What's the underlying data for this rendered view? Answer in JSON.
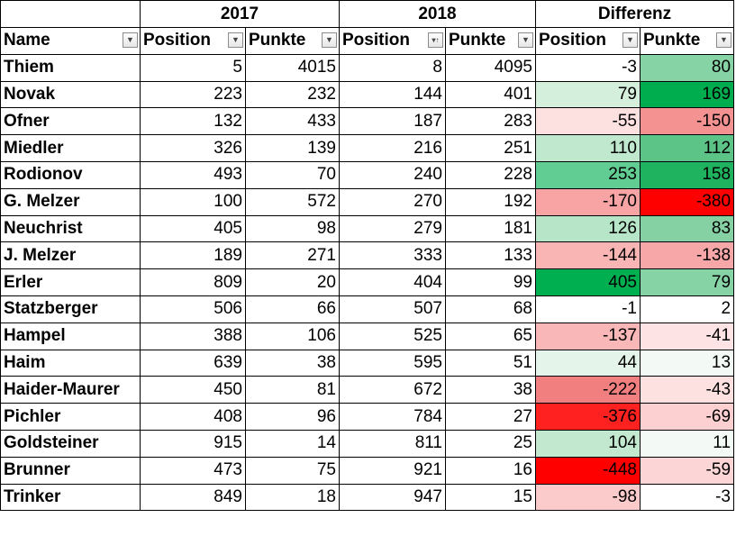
{
  "groups": {
    "g2017": "2017",
    "g2018": "2018",
    "diff": "Differenz"
  },
  "headers": {
    "name": "Name",
    "pos2017": "Position",
    "pts2017": "Punkte",
    "pos2018": "Position",
    "pts2018": "Punkte",
    "posdiff": "Position",
    "ptsdiff": "Punkte"
  },
  "icons": {
    "filter": "dropdown-arrow-icon",
    "sorted_filter": "sort-ascending-filter-icon"
  },
  "rows": [
    {
      "name": "Thiem",
      "p17": "5",
      "k17": "4015",
      "p18": "8",
      "k18": "4095",
      "dp": "-3",
      "dk": "80",
      "dp_bg": "#ffffff",
      "dk_bg": "#86d3a6"
    },
    {
      "name": "Novak",
      "p17": "223",
      "k17": "232",
      "p18": "144",
      "k18": "401",
      "dp": "79",
      "dk": "169",
      "dp_bg": "#d5efdd",
      "dk_bg": "#00ad4e"
    },
    {
      "name": "Ofner",
      "p17": "132",
      "k17": "433",
      "p18": "187",
      "k18": "283",
      "dp": "-55",
      "dk": "-150",
      "dp_bg": "#fde1e1",
      "dk_bg": "#f49292"
    },
    {
      "name": "Miedler",
      "p17": "326",
      "k17": "139",
      "p18": "216",
      "k18": "251",
      "dp": "110",
      "dk": "112",
      "dp_bg": "#bfe8ce",
      "dk_bg": "#5dc488"
    },
    {
      "name": "Rodionov",
      "p17": "493",
      "k17": "70",
      "p18": "240",
      "k18": "228",
      "dp": "253",
      "dk": "158",
      "dp_bg": "#62cd92",
      "dk_bg": "#20b35f"
    },
    {
      "name": "G. Melzer",
      "p17": "100",
      "k17": "572",
      "p18": "270",
      "k18": "192",
      "dp": "-170",
      "dk": "-380",
      "dp_bg": "#f8a4a4",
      "dk_bg": "#ff0000"
    },
    {
      "name": "Neuchrist",
      "p17": "405",
      "k17": "98",
      "p18": "279",
      "k18": "181",
      "dp": "126",
      "dk": "83",
      "dp_bg": "#b6e5c7",
      "dk_bg": "#85d1a3"
    },
    {
      "name": "J. Melzer",
      "p17": "189",
      "k17": "271",
      "p18": "333",
      "k18": "133",
      "dp": "-144",
      "dk": "-138",
      "dp_bg": "#f9b4b4",
      "dk_bg": "#f7a7a7"
    },
    {
      "name": "Erler",
      "p17": "809",
      "k17": "20",
      "p18": "404",
      "k18": "99",
      "dp": "405",
      "dk": "79",
      "dp_bg": "#00b050",
      "dk_bg": "#86d3a6"
    },
    {
      "name": "Statzberger",
      "p17": "506",
      "k17": "66",
      "p18": "507",
      "k18": "68",
      "dp": "-1",
      "dk": "2",
      "dp_bg": "#ffffff",
      "dk_bg": "#ffffff"
    },
    {
      "name": "Hampel",
      "p17": "388",
      "k17": "106",
      "p18": "525",
      "k18": "65",
      "dp": "-137",
      "dk": "-41",
      "dp_bg": "#fab7b7",
      "dk_bg": "#fde3e3"
    },
    {
      "name": "Haim",
      "p17": "639",
      "k17": "38",
      "p18": "595",
      "k18": "51",
      "dp": "44",
      "dk": "13",
      "dp_bg": "#e5f4ea",
      "dk_bg": "#f3faf5"
    },
    {
      "name": "Haider-Maurer",
      "p17": "450",
      "k17": "81",
      "p18": "672",
      "k18": "38",
      "dp": "-222",
      "dk": "-43",
      "dp_bg": "#f27f7f",
      "dk_bg": "#fde1e1"
    },
    {
      "name": "Pichler",
      "p17": "408",
      "k17": "96",
      "p18": "784",
      "k18": "27",
      "dp": "-376",
      "dk": "-69",
      "dp_bg": "#ff2020",
      "dk_bg": "#fcd0d0"
    },
    {
      "name": "Goldsteiner",
      "p17": "915",
      "k17": "14",
      "p18": "811",
      "k18": "25",
      "dp": "104",
      "dk": "11",
      "dp_bg": "#c2e9d0",
      "dk_bg": "#f3faf5"
    },
    {
      "name": "Brunner",
      "p17": "473",
      "k17": "75",
      "p18": "921",
      "k18": "16",
      "dp": "-448",
      "dk": "-59",
      "dp_bg": "#ff0000",
      "dk_bg": "#fcd6d6"
    },
    {
      "name": "Trinker",
      "p17": "849",
      "k17": "18",
      "p18": "947",
      "k18": "15",
      "dp": "-98",
      "dk": "-3",
      "dp_bg": "#fbcaca",
      "dk_bg": "#ffffff"
    }
  ]
}
